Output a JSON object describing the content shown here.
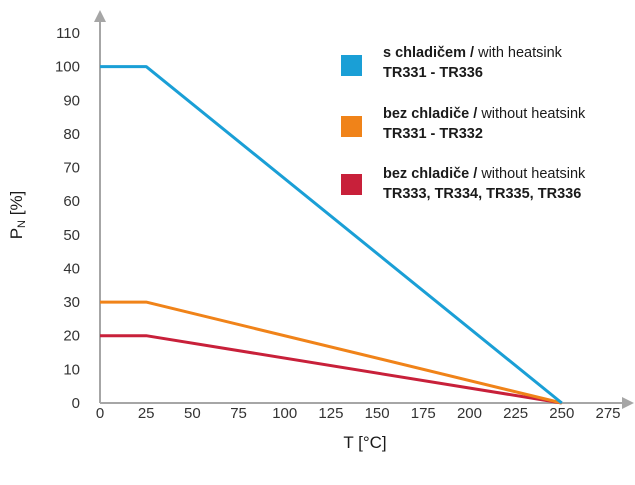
{
  "chart_data": {
    "type": "line",
    "xlabel": "T [°C]",
    "ylabel": {
      "main": "P",
      "sub": "N",
      "unit": " [%]"
    },
    "xlim": [
      0,
      275
    ],
    "ylim": [
      0,
      110
    ],
    "xticks": [
      0,
      25,
      50,
      75,
      100,
      125,
      150,
      175,
      200,
      225,
      250,
      275
    ],
    "yticks": [
      0,
      10,
      20,
      30,
      40,
      50,
      60,
      70,
      80,
      90,
      100,
      110
    ],
    "grid": false,
    "legend_position": "top-right",
    "series": [
      {
        "name_bold": "s chladičem /",
        "name_regular": " with heatsink",
        "name_line2": "TR331 - TR336",
        "color": "#1a9fd6",
        "points": [
          [
            0,
            100
          ],
          [
            25,
            100
          ],
          [
            250,
            0
          ]
        ]
      },
      {
        "name_bold": "bez chladiče /",
        "name_regular": " without heatsink",
        "name_line2": "TR331 - TR332",
        "color": "#f08319",
        "points": [
          [
            0,
            30
          ],
          [
            25,
            30
          ],
          [
            250,
            0
          ]
        ]
      },
      {
        "name_bold": "bez chladiče /",
        "name_regular": " without heatsink",
        "name_line2": "TR333, TR334, TR335, TR336",
        "color": "#c8203a",
        "points": [
          [
            0,
            20
          ],
          [
            25,
            20
          ],
          [
            250,
            0
          ]
        ]
      }
    ]
  }
}
